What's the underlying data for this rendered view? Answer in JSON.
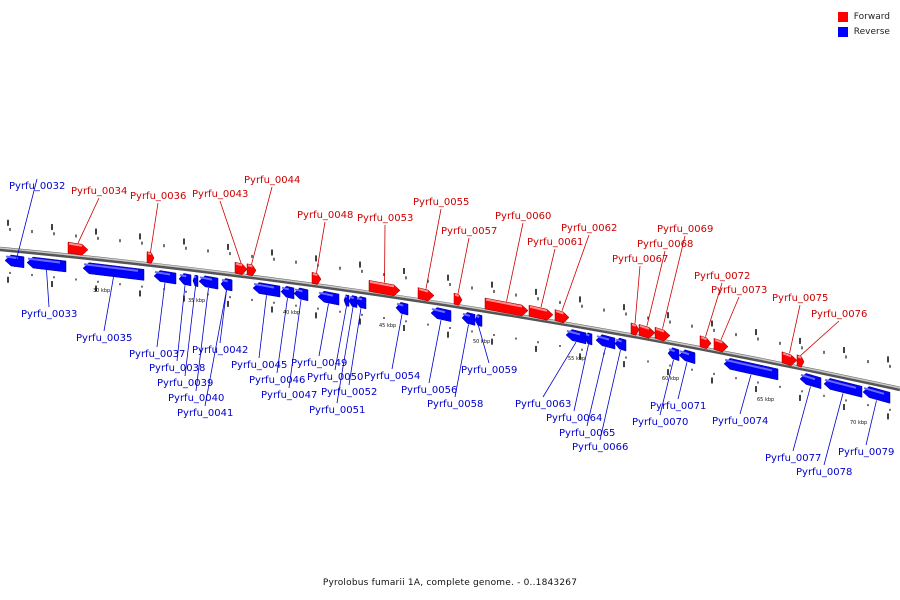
{
  "legend": {
    "forward": {
      "label": "Forward",
      "color": "#ff0000"
    },
    "reverse": {
      "label": "Reverse",
      "color": "#0000ff"
    }
  },
  "caption": "Pyrolobus fumarii 1A, complete genome. - 0..1843267",
  "colors": {
    "forward": "#ff0000",
    "reverse": "#0000ff",
    "label_forward": "#cc0000",
    "label_reverse": "#0000cc",
    "backbone": "#999999"
  },
  "scale": {
    "unit": "kbp",
    "ticks": [
      "30 kbp",
      "35 kbp",
      "40 kbp",
      "45 kbp",
      "50 kbp",
      "55 kbp",
      "60 kbp",
      "65 kbp",
      "70 kbp"
    ]
  },
  "genes": [
    {
      "name": "Pyrfu_0032",
      "strand": "reverse"
    },
    {
      "name": "Pyrfu_0033",
      "strand": "reverse"
    },
    {
      "name": "Pyrfu_0034",
      "strand": "forward"
    },
    {
      "name": "Pyrfu_0035",
      "strand": "reverse"
    },
    {
      "name": "Pyrfu_0036",
      "strand": "forward"
    },
    {
      "name": "Pyrfu_0037",
      "strand": "reverse"
    },
    {
      "name": "Pyrfu_0038",
      "strand": "reverse"
    },
    {
      "name": "Pyrfu_0039",
      "strand": "reverse"
    },
    {
      "name": "Pyrfu_0040",
      "strand": "reverse"
    },
    {
      "name": "Pyrfu_0041",
      "strand": "reverse"
    },
    {
      "name": "Pyrfu_0042",
      "strand": "reverse"
    },
    {
      "name": "Pyrfu_0043",
      "strand": "forward"
    },
    {
      "name": "Pyrfu_0044",
      "strand": "forward"
    },
    {
      "name": "Pyrfu_0045",
      "strand": "reverse"
    },
    {
      "name": "Pyrfu_0046",
      "strand": "reverse"
    },
    {
      "name": "Pyrfu_0047",
      "strand": "reverse"
    },
    {
      "name": "Pyrfu_0048",
      "strand": "forward"
    },
    {
      "name": "Pyrfu_0049",
      "strand": "reverse"
    },
    {
      "name": "Pyrfu_0050",
      "strand": "reverse"
    },
    {
      "name": "Pyrfu_0051",
      "strand": "reverse"
    },
    {
      "name": "Pyrfu_0052",
      "strand": "reverse"
    },
    {
      "name": "Pyrfu_0053",
      "strand": "forward"
    },
    {
      "name": "Pyrfu_0054",
      "strand": "reverse"
    },
    {
      "name": "Pyrfu_0055",
      "strand": "forward"
    },
    {
      "name": "Pyrfu_0056",
      "strand": "reverse"
    },
    {
      "name": "Pyrfu_0057",
      "strand": "forward"
    },
    {
      "name": "Pyrfu_0058",
      "strand": "reverse"
    },
    {
      "name": "Pyrfu_0059",
      "strand": "reverse"
    },
    {
      "name": "Pyrfu_0060",
      "strand": "forward"
    },
    {
      "name": "Pyrfu_0061",
      "strand": "forward"
    },
    {
      "name": "Pyrfu_0062",
      "strand": "forward"
    },
    {
      "name": "Pyrfu_0063",
      "strand": "reverse"
    },
    {
      "name": "Pyrfu_0064",
      "strand": "reverse"
    },
    {
      "name": "Pyrfu_0065",
      "strand": "reverse"
    },
    {
      "name": "Pyrfu_0066",
      "strand": "reverse"
    },
    {
      "name": "Pyrfu_0067",
      "strand": "forward"
    },
    {
      "name": "Pyrfu_0068",
      "strand": "forward"
    },
    {
      "name": "Pyrfu_0069",
      "strand": "forward"
    },
    {
      "name": "Pyrfu_0070",
      "strand": "reverse"
    },
    {
      "name": "Pyrfu_0071",
      "strand": "reverse"
    },
    {
      "name": "Pyrfu_0072",
      "strand": "forward"
    },
    {
      "name": "Pyrfu_0073",
      "strand": "forward"
    },
    {
      "name": "Pyrfu_0074",
      "strand": "reverse"
    },
    {
      "name": "Pyrfu_0075",
      "strand": "forward"
    },
    {
      "name": "Pyrfu_0076",
      "strand": "forward"
    },
    {
      "name": "Pyrfu_0077",
      "strand": "reverse"
    },
    {
      "name": "Pyrfu_0078",
      "strand": "reverse"
    },
    {
      "name": "Pyrfu_0079",
      "strand": "reverse"
    }
  ]
}
